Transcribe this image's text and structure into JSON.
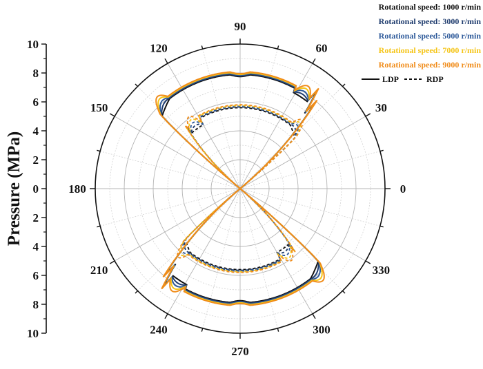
{
  "chart_data": {
    "type": "polar-line",
    "title": "",
    "ylabel": "Pressure (MPa)",
    "radial_range": [
      0,
      10
    ],
    "radial_ticks": [
      "10",
      "8",
      "6",
      "4",
      "2",
      "0",
      "2",
      "4",
      "6",
      "8",
      "10"
    ],
    "angular_ticks": [
      "0",
      "30",
      "60",
      "90",
      "120",
      "150",
      "180",
      "210",
      "240",
      "270",
      "300",
      "330"
    ],
    "angular_tick_values": [
      0,
      30,
      60,
      90,
      120,
      150,
      180,
      210,
      240,
      270,
      300,
      330
    ],
    "grid": true,
    "legend_position": "top-right",
    "legend": {
      "series_labels": [
        "Rotational speed: 1000 r/min",
        "Rotational speed: 3000 r/min",
        "Rotational speed: 5000 r/min",
        "Rotational speed: 7000 r/min",
        "Rotational speed: 9000 r/min"
      ],
      "style_labels": [
        "LDP",
        "RDP"
      ]
    },
    "colors": [
      "#111111",
      "#1f3c6e",
      "#2e5a9a",
      "#f5c518",
      "#f08c1a"
    ],
    "series": [
      {
        "name": "Rotational speed: 1000 r/min",
        "plateau": 7.9,
        "spike": 0.0
      },
      {
        "name": "Rotational speed: 3000 r/min",
        "plateau": 7.95,
        "spike": 0.25
      },
      {
        "name": "Rotational speed: 5000 r/min",
        "plateau": 8.0,
        "spike": 0.5
      },
      {
        "name": "Rotational speed: 7000 r/min",
        "plateau": 8.05,
        "spike": 0.75
      },
      {
        "name": "Rotational speed: 9000 r/min",
        "plateau": 8.1,
        "spike": 1.0
      }
    ]
  }
}
